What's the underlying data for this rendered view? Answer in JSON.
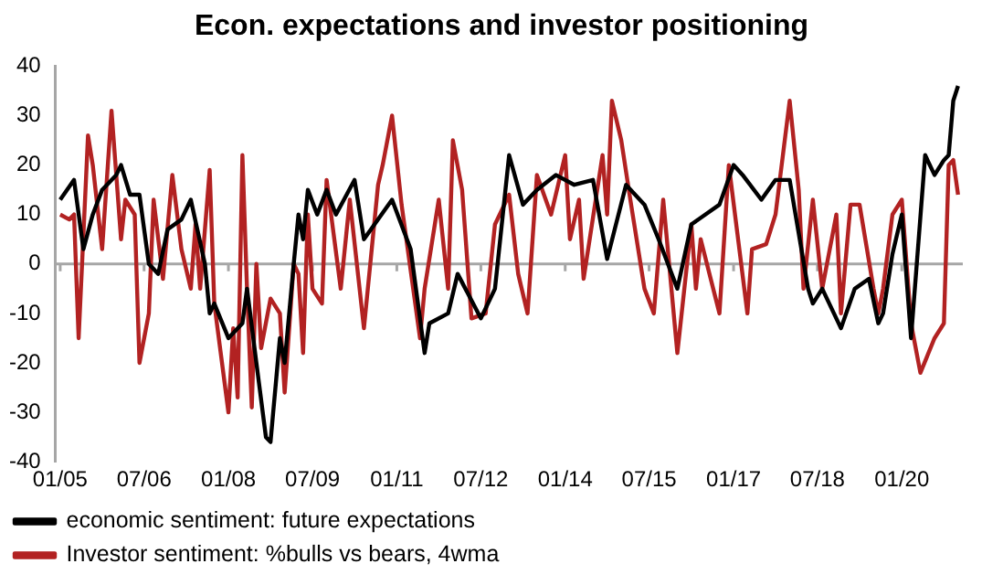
{
  "chart_data": {
    "type": "line",
    "title": "Econ. expectations and investor positioning",
    "xlim": [
      "2004-12",
      "2021-02"
    ],
    "xticks": [
      {
        "value": "2005-01",
        "label": "01/05"
      },
      {
        "value": "2006-07",
        "label": "07/06"
      },
      {
        "value": "2008-01",
        "label": "01/08"
      },
      {
        "value": "2009-07",
        "label": "07/09"
      },
      {
        "value": "2011-01",
        "label": "01/11"
      },
      {
        "value": "2012-07",
        "label": "07/12"
      },
      {
        "value": "2014-01",
        "label": "01/14"
      },
      {
        "value": "2015-07",
        "label": "07/15"
      },
      {
        "value": "2017-01",
        "label": "01/17"
      },
      {
        "value": "2018-07",
        "label": "07/18"
      },
      {
        "value": "2020-01",
        "label": "01/20"
      }
    ],
    "ylim": [
      -40,
      40
    ],
    "yticks": [
      -40,
      -30,
      -20,
      -10,
      0,
      10,
      20,
      30,
      40
    ],
    "grid": false,
    "legend": "bottom",
    "line_style": "solid",
    "marker": "none",
    "ref_lines": [
      {
        "axis": "y",
        "value": 0,
        "color": "#a6a6a6"
      }
    ],
    "series": [
      {
        "name": "economic sentiment: future expectations",
        "color": "#000000",
        "x": [
          "2005-01",
          "2005-04",
          "2005-06",
          "2005-08",
          "2005-10",
          "2006-01",
          "2006-02",
          "2006-04",
          "2006-06",
          "2006-08",
          "2006-10",
          "2006-12",
          "2007-03",
          "2007-05",
          "2007-08",
          "2007-09",
          "2007-10",
          "2008-01",
          "2008-04",
          "2008-05",
          "2008-07",
          "2008-09",
          "2008-10",
          "2008-12",
          "2009-01",
          "2009-03",
          "2009-04",
          "2009-05",
          "2009-06",
          "2009-08",
          "2009-10",
          "2009-12",
          "2010-04",
          "2010-06",
          "2010-12",
          "2011-04",
          "2011-07",
          "2011-08",
          "2011-12",
          "2012-02",
          "2012-07",
          "2012-10",
          "2013-01",
          "2013-04",
          "2013-07",
          "2013-11",
          "2014-03",
          "2014-07",
          "2014-10",
          "2015-02",
          "2015-06",
          "2015-09",
          "2016-01",
          "2016-04",
          "2016-07",
          "2016-10",
          "2017-01",
          "2017-03",
          "2017-07",
          "2017-10",
          "2018-01",
          "2018-05",
          "2018-06",
          "2018-08",
          "2018-12",
          "2019-03",
          "2019-06",
          "2019-08",
          "2019-09",
          "2019-11",
          "2020-01",
          "2020-03",
          "2020-06",
          "2020-08",
          "2020-10",
          "2020-11",
          "2020-12",
          "2021-01"
        ],
        "values": [
          13,
          17,
          3,
          10,
          15,
          18,
          20,
          14,
          14,
          0,
          -2,
          7,
          9,
          13,
          0,
          -10,
          -8,
          -15,
          -12,
          -5,
          -20,
          -35,
          -36,
          -15,
          -20,
          0,
          10,
          5,
          15,
          10,
          15,
          10,
          17,
          5,
          13,
          3,
          -18,
          -12,
          -10,
          -2,
          -11,
          -5,
          22,
          12,
          15,
          18,
          16,
          17,
          1,
          16,
          12,
          5,
          -5,
          8,
          10,
          12,
          20,
          18,
          13,
          17,
          17,
          -5,
          -8,
          -5,
          -13,
          -5,
          -3,
          -12,
          -10,
          2,
          10,
          -15,
          22,
          18,
          21,
          22,
          33,
          36
        ]
      },
      {
        "name": "Investor sentiment: %bulls vs bears, 4wma",
        "color": "#b22222",
        "x": [
          "2005-01",
          "2005-03",
          "2005-04",
          "2005-05",
          "2005-07",
          "2005-08",
          "2005-10",
          "2005-12",
          "2006-02",
          "2006-03",
          "2006-05",
          "2006-06",
          "2006-08",
          "2006-09",
          "2006-11",
          "2007-01",
          "2007-03",
          "2007-05",
          "2007-06",
          "2007-07",
          "2007-09",
          "2007-10",
          "2008-01",
          "2008-02",
          "2008-03",
          "2008-04",
          "2008-05",
          "2008-06",
          "2008-07",
          "2008-08",
          "2008-10",
          "2008-12",
          "2009-01",
          "2009-03",
          "2009-04",
          "2009-05",
          "2009-06",
          "2009-07",
          "2009-09",
          "2009-10",
          "2010-01",
          "2010-03",
          "2010-06",
          "2010-09",
          "2010-10",
          "2010-12",
          "2011-02",
          "2011-06",
          "2011-07",
          "2011-10",
          "2011-12",
          "2012-01",
          "2012-03",
          "2012-05",
          "2012-08",
          "2012-10",
          "2013-01",
          "2013-03",
          "2013-05",
          "2013-07",
          "2013-10",
          "2014-01",
          "2014-02",
          "2014-04",
          "2014-05",
          "2014-09",
          "2014-10",
          "2014-11",
          "2015-01",
          "2015-03",
          "2015-06",
          "2015-08",
          "2015-10",
          "2016-01",
          "2016-04",
          "2016-05",
          "2016-06",
          "2016-10",
          "2016-12",
          "2017-04",
          "2017-05",
          "2017-08",
          "2017-10",
          "2018-01",
          "2018-03",
          "2018-04",
          "2018-06",
          "2018-08",
          "2018-11",
          "2018-12",
          "2019-02",
          "2019-04",
          "2019-07",
          "2019-08",
          "2019-09",
          "2019-11",
          "2020-01",
          "2020-03",
          "2020-05",
          "2020-08",
          "2020-10",
          "2020-11",
          "2020-12",
          "2021-01"
        ],
        "values": [
          10,
          9,
          10,
          -15,
          26,
          20,
          3,
          31,
          5,
          13,
          10,
          -20,
          -10,
          13,
          -3,
          18,
          3,
          -5,
          8,
          -5,
          19,
          -8,
          -30,
          -13,
          -27,
          22,
          -5,
          -29,
          0,
          -17,
          -7,
          -10,
          -26,
          0,
          -2,
          -18,
          10,
          -5,
          -8,
          17,
          -5,
          13,
          -13,
          16,
          20,
          30,
          12,
          -15,
          -5,
          13,
          -5,
          25,
          15,
          -11,
          -10,
          8,
          14,
          -2,
          -10,
          18,
          10,
          22,
          5,
          13,
          -3,
          22,
          10,
          33,
          25,
          13,
          -5,
          -10,
          13,
          -18,
          8,
          -5,
          5,
          -10,
          20,
          -10,
          3,
          4,
          10,
          33,
          15,
          -5,
          13,
          -5,
          10,
          -10,
          12,
          12,
          -5,
          -10,
          -5,
          10,
          13,
          -12,
          -22,
          -15,
          -12,
          20,
          21,
          14
        ]
      }
    ]
  }
}
